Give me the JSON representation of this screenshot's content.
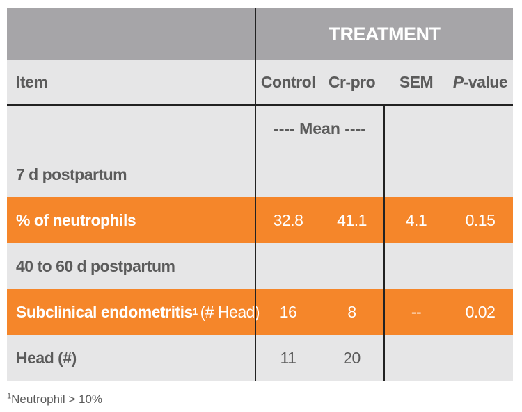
{
  "table": {
    "group_header": "TREATMENT",
    "columns": {
      "item": "Item",
      "control": "Control",
      "crpro": "Cr-pro",
      "sem": "SEM",
      "p_prefix": "P",
      "p_suffix": "-value"
    },
    "mean_label": "---- Mean ----",
    "rows": [
      {
        "label": "7 d postpartum",
        "control": "",
        "crpro": "",
        "sem": "",
        "p": ""
      },
      {
        "label": "% of neutrophils",
        "control": "32.8",
        "crpro": "41.1",
        "sem": "4.1",
        "p": "0.15"
      },
      {
        "label": "40 to 60 d postpartum",
        "control": "",
        "crpro": "",
        "sem": "",
        "p": ""
      },
      {
        "label": "Subclinical endometritis",
        "superscript": "1",
        "note": "(# Head)",
        "control": "16",
        "crpro": "8",
        "sem": "--",
        "p": "0.02"
      },
      {
        "label": "Head (#)",
        "control": "11",
        "crpro": "20",
        "sem": "",
        "p": ""
      }
    ]
  },
  "footnote": {
    "superscript": "1",
    "text": "Neutrophil > 10%"
  },
  "colors": {
    "header_gray": "#a6a5a8",
    "row_gray": "#e6e6e7",
    "highlight_orange": "#f5862a",
    "text_gray": "#5b5b5b"
  }
}
